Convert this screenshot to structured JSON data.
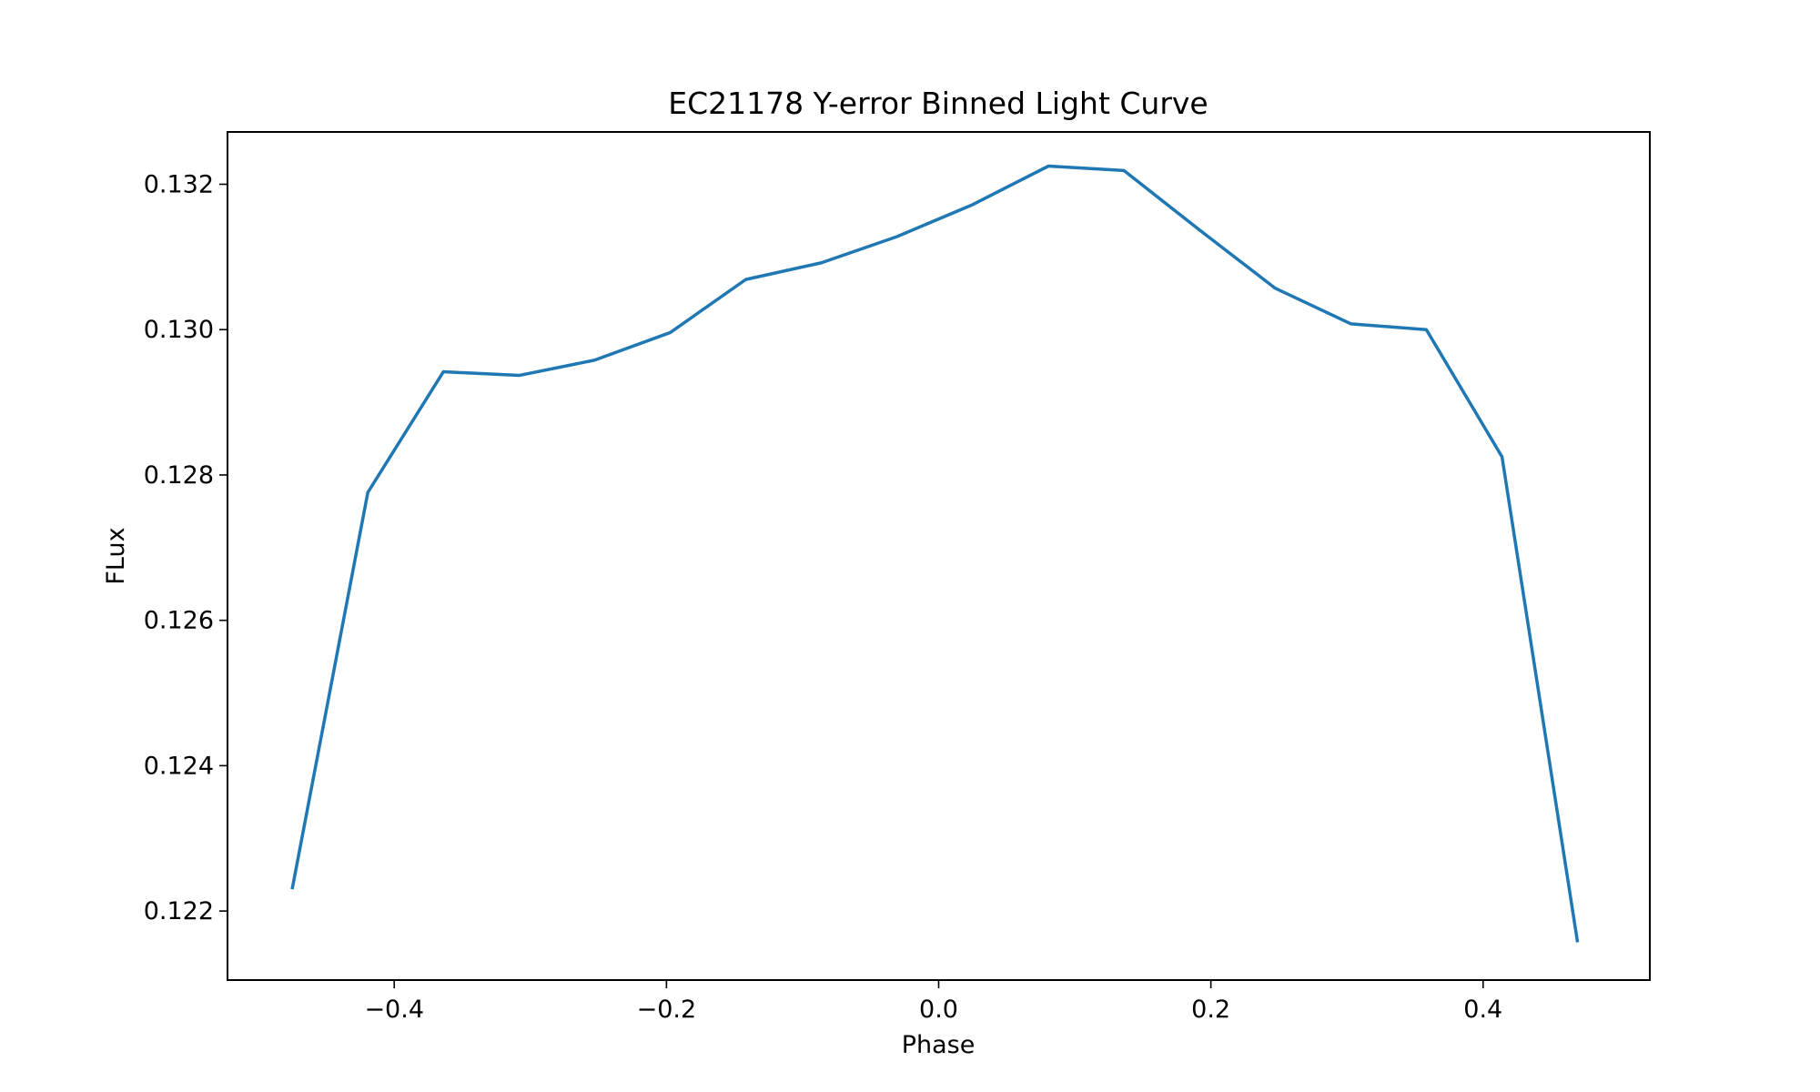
{
  "chart_data": {
    "type": "line",
    "title": "EC21178 Y-error Binned Light Curve",
    "xlabel": "Phase",
    "ylabel": "FLux",
    "xlim": [
      -0.5225,
      0.5225
    ],
    "ylim": [
      0.12105,
      0.13272
    ],
    "xticks": [
      -0.4,
      -0.2,
      0.0,
      0.2,
      0.4
    ],
    "xtick_labels": [
      "−0.4",
      "−0.2",
      "0.0",
      "0.2",
      "0.4"
    ],
    "yticks": [
      0.122,
      0.124,
      0.126,
      0.128,
      0.13,
      0.132
    ],
    "ytick_labels": [
      "0.122",
      "0.124",
      "0.126",
      "0.128",
      "0.130",
      "0.132"
    ],
    "grid": false,
    "legend": "none",
    "line_color": "#1f77b4",
    "series": [
      {
        "x": [
          -0.475,
          -0.4194,
          -0.3639,
          -0.3083,
          -0.2528,
          -0.1972,
          -0.1417,
          -0.0861,
          -0.0306,
          0.025,
          0.0806,
          0.1361,
          0.1917,
          0.2472,
          0.3028,
          0.3583,
          0.4139,
          0.4694
        ],
        "y": [
          0.1223,
          0.12776,
          0.12942,
          0.12937,
          0.12958,
          0.12996,
          0.13069,
          0.13092,
          0.13128,
          0.13172,
          0.13225,
          0.13219,
          0.13137,
          0.13057,
          0.13008,
          0.13,
          0.12825,
          0.12157
        ]
      }
    ]
  }
}
